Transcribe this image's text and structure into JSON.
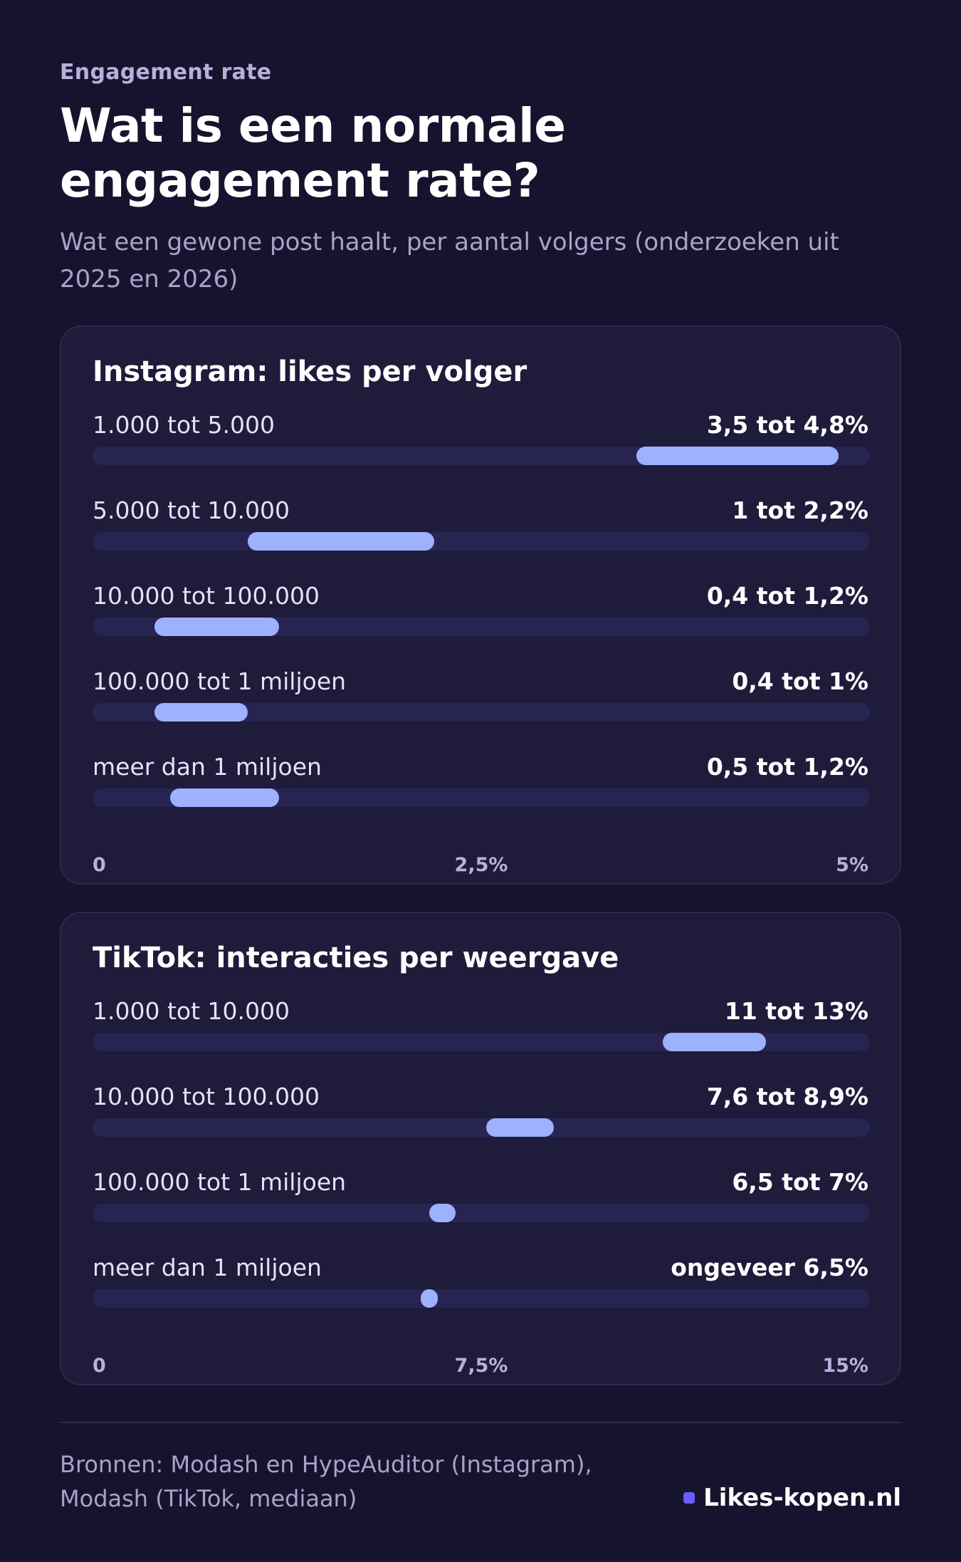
{
  "header": {
    "eyebrow": "Engagement rate",
    "title": "Wat is een normale engagement rate?",
    "subtitle": "Wat een gewone post haalt, per aantal volgers (onderzoeken uit 2025 en 2026)"
  },
  "chart_data": [
    {
      "type": "bar",
      "title": "Instagram: likes per volger",
      "xlim": [
        0,
        5
      ],
      "ticks": [
        "0",
        "2,5%",
        "5%"
      ],
      "rows": [
        {
          "label": "1.000 tot 5.000",
          "value_text": "3,5 tot 4,8%",
          "low": 3.5,
          "high": 4.8
        },
        {
          "label": "5.000 tot 10.000",
          "value_text": "1 tot 2,2%",
          "low": 1.0,
          "high": 2.2
        },
        {
          "label": "10.000 tot 100.000",
          "value_text": "0,4 tot 1,2%",
          "low": 0.4,
          "high": 1.2
        },
        {
          "label": "100.000 tot 1 miljoen",
          "value_text": "0,4 tot 1%",
          "low": 0.4,
          "high": 1.0
        },
        {
          "label": "meer dan 1 miljoen",
          "value_text": "0,5 tot 1,2%",
          "low": 0.5,
          "high": 1.2
        }
      ],
      "bar_color": "#9db1ff"
    },
    {
      "type": "bar",
      "title": "TikTok: interacties per weergave",
      "xlim": [
        0,
        15
      ],
      "ticks": [
        "0",
        "7,5%",
        "15%"
      ],
      "rows": [
        {
          "label": "1.000 tot 10.000",
          "value_text": "11 tot 13%",
          "low": 11,
          "high": 13
        },
        {
          "label": "10.000 tot 100.000",
          "value_text": "7,6 tot 8,9%",
          "low": 7.6,
          "high": 8.9
        },
        {
          "label": "100.000 tot 1 miljoen",
          "value_text": "6,5 tot 7%",
          "low": 6.5,
          "high": 7.0
        },
        {
          "label": "meer dan 1 miljoen",
          "value_text": "ongeveer 6,5%",
          "low": 6.5,
          "high": 6.5
        }
      ],
      "bar_color": "#9db1ff"
    }
  ],
  "footer": {
    "sources_line1": "Bronnen: Modash en HypeAuditor (Instagram),",
    "sources_line2": "Modash (TikTok, mediaan)",
    "brand": "Likes-kopen.nl",
    "brand_color": "#6b5cff"
  }
}
